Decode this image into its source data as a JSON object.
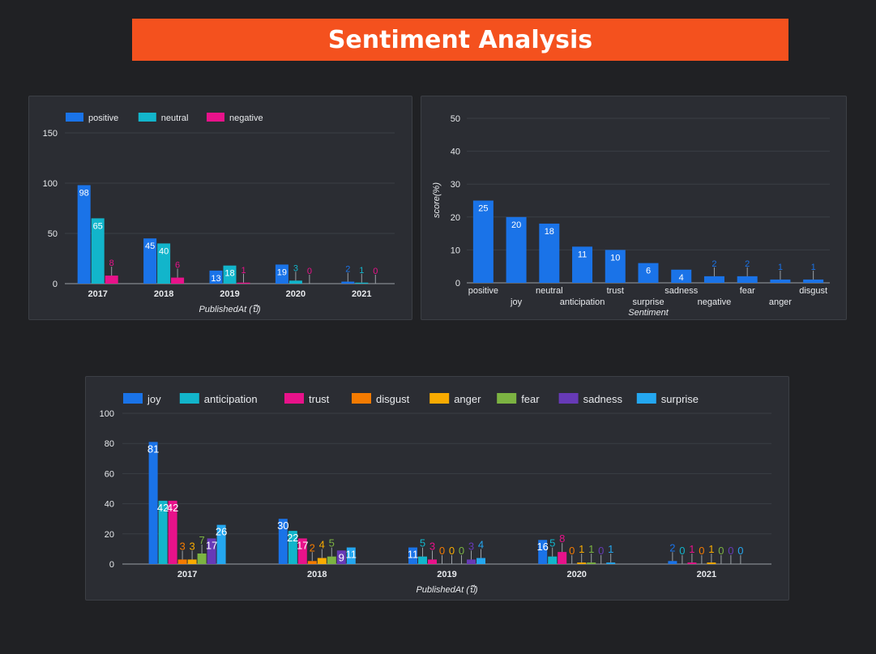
{
  "page": {
    "title": "Sentiment Analysis",
    "colors": {
      "banner": "#f4511e",
      "background": "#202124",
      "panel": "#2b2d33"
    }
  },
  "chart_data": [
    {
      "type": "bar",
      "categories": [
        "2017",
        "2018",
        "2019",
        "2020",
        "2021"
      ],
      "series": [
        {
          "name": "positive",
          "color": "#1a73e8",
          "values": [
            98,
            45,
            13,
            19,
            2
          ]
        },
        {
          "name": "neutral",
          "color": "#12b5cb",
          "values": [
            65,
            40,
            18,
            3,
            1
          ]
        },
        {
          "name": "negative",
          "color": "#e8128a",
          "values": [
            8,
            6,
            1,
            0,
            0
          ]
        }
      ],
      "xlabel": "PublishedAt (ปี)",
      "ylabel": "",
      "ylim": [
        0,
        150
      ],
      "yticks": [
        0,
        50,
        100,
        150
      ],
      "legend": "top-left",
      "grid": true
    },
    {
      "type": "bar",
      "categories": [
        "positive",
        "joy",
        "neutral",
        "anticipation",
        "trust",
        "surprise",
        "sadness",
        "negative",
        "fear",
        "anger",
        "disgust"
      ],
      "series": [
        {
          "color": "#1a73e8",
          "values": [
            25,
            20,
            18,
            11,
            10,
            6,
            4,
            2,
            2,
            1,
            1
          ]
        }
      ],
      "xlabel": "Sentiment",
      "ylabel": "score(%)",
      "ylim": [
        0,
        50
      ],
      "yticks": [
        0,
        10,
        20,
        30,
        40,
        50
      ],
      "grid": true
    },
    {
      "type": "bar",
      "categories": [
        "2017",
        "2018",
        "2019",
        "2020",
        "2021"
      ],
      "series": [
        {
          "name": "joy",
          "color": "#1a73e8",
          "values": [
            81,
            30,
            11,
            16,
            2
          ]
        },
        {
          "name": "anticipation",
          "color": "#12b5cb",
          "values": [
            42,
            22,
            5,
            5,
            0
          ]
        },
        {
          "name": "trust",
          "color": "#e8128a",
          "values": [
            42,
            17,
            3,
            8,
            1
          ]
        },
        {
          "name": "disgust",
          "color": "#f47b00",
          "values": [
            3,
            2,
            0,
            0,
            0
          ]
        },
        {
          "name": "anger",
          "color": "#f9ab00",
          "values": [
            3,
            4,
            0,
            1,
            1
          ]
        },
        {
          "name": "fear",
          "color": "#7cb342",
          "values": [
            7,
            5,
            0,
            1,
            0
          ]
        },
        {
          "name": "sadness",
          "color": "#673ab7",
          "values": [
            17,
            9,
            3,
            0,
            0
          ]
        },
        {
          "name": "surprise",
          "color": "#24a7f0",
          "values": [
            26,
            11,
            4,
            1,
            0
          ]
        }
      ],
      "xlabel": "PublishedAt (ปี)",
      "ylabel": "",
      "ylim": [
        0,
        100
      ],
      "yticks": [
        0,
        20,
        40,
        60,
        80,
        100
      ],
      "legend": "top-left",
      "grid": true
    }
  ]
}
